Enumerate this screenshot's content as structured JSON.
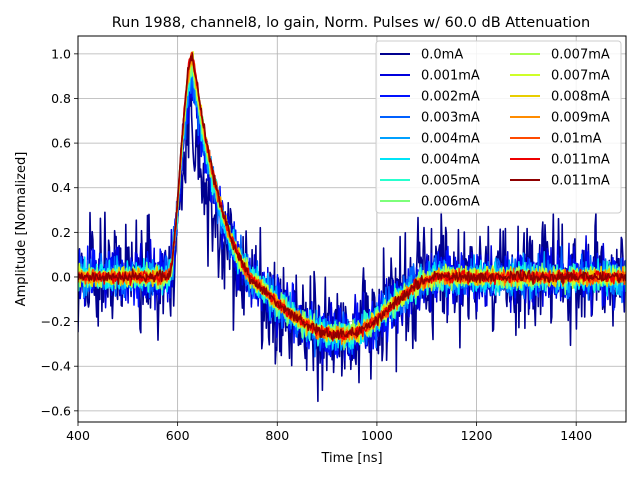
{
  "chart_data": {
    "type": "line",
    "title": "Run 1988, channel8, lo gain, Norm. Pulses w/ 60.0 dB Attenuation",
    "xlabel": "Time [ns]",
    "ylabel": "Amplitude [Normalized]",
    "xlim": [
      400,
      1500
    ],
    "ylim": [
      -0.65,
      1.08
    ],
    "xticks": [
      400,
      600,
      800,
      1000,
      1200,
      1400
    ],
    "yticks": [
      -0.6,
      -0.4,
      -0.2,
      0.0,
      0.2,
      0.4,
      0.6,
      0.8,
      1.0
    ],
    "xtick_labels": [
      "400",
      "600",
      "800",
      "1000",
      "1200",
      "1400"
    ],
    "ytick_labels": [
      "−0.6",
      "−0.4",
      "−0.2",
      "0.0",
      "0.2",
      "0.4",
      "0.6",
      "0.8",
      "1.0"
    ],
    "grid": true,
    "legend_position": "top-right",
    "legend_columns": 2,
    "pulse_shape": {
      "baseline_end_ns": 580,
      "peak_ns": 630,
      "zero_cross_ns": 745,
      "trough_ns": 930,
      "trough_value": -0.26,
      "recovery_end_ns": 1130
    },
    "series": [
      {
        "name": "0.0mA",
        "color": "#00008f",
        "peak": 0.7,
        "noise": 0.13
      },
      {
        "name": "0.001mA",
        "color": "#0000dd",
        "peak": 0.85,
        "noise": 0.07
      },
      {
        "name": "0.002mA",
        "color": "#0010ff",
        "peak": 0.88,
        "noise": 0.055
      },
      {
        "name": "0.003mA",
        "color": "#0060ff",
        "peak": 0.9,
        "noise": 0.045
      },
      {
        "name": "0.004mA",
        "color": "#00a0ff",
        "peak": 0.92,
        "noise": 0.038
      },
      {
        "name": "0.004mA",
        "color": "#00e4f8",
        "peak": 0.93,
        "noise": 0.032
      },
      {
        "name": "0.005mA",
        "color": "#29ffce",
        "peak": 0.94,
        "noise": 0.028
      },
      {
        "name": "0.006mA",
        "color": "#7dff7a",
        "peak": 0.95,
        "noise": 0.025
      },
      {
        "name": "0.007mA",
        "color": "#a8ff4f",
        "peak": 0.96,
        "noise": 0.022
      },
      {
        "name": "0.007mA",
        "color": "#cfff28",
        "peak": 0.97,
        "noise": 0.02
      },
      {
        "name": "0.008mA",
        "color": "#e8ce00",
        "peak": 0.98,
        "noise": 0.018
      },
      {
        "name": "0.009mA",
        "color": "#ff8c00",
        "peak": 0.98,
        "noise": 0.016
      },
      {
        "name": "0.01mA",
        "color": "#ff4a00",
        "peak": 0.99,
        "noise": 0.015
      },
      {
        "name": "0.011mA",
        "color": "#ee0000",
        "peak": 1.0,
        "noise": 0.013
      },
      {
        "name": "0.011mA",
        "color": "#8f0000",
        "peak": 1.0,
        "noise": 0.012
      }
    ]
  }
}
